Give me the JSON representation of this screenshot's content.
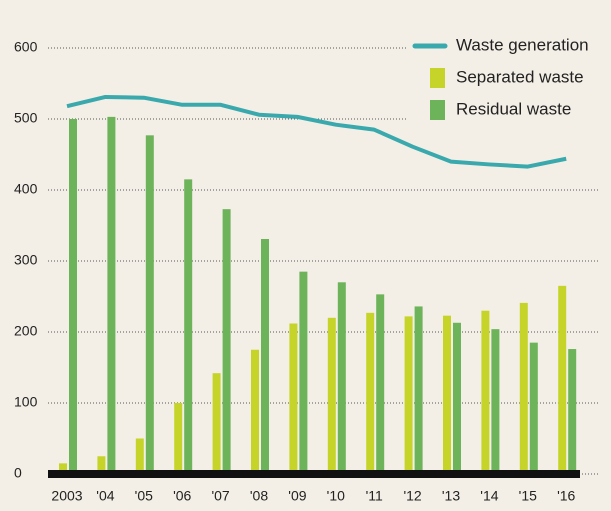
{
  "chart_data": {
    "type": "bar",
    "categories": [
      "2003",
      "'04",
      "'05",
      "'06",
      "'07",
      "'08",
      "'09",
      "'10",
      "'11",
      "'12",
      "'13",
      "'14",
      "'15",
      "'16"
    ],
    "series": [
      {
        "name": "Waste generation",
        "type": "line",
        "color": "#3aa9ad",
        "values": [
          518,
          531,
          530,
          520,
          520,
          506,
          503,
          492,
          485,
          461,
          440,
          436,
          433,
          444
        ]
      },
      {
        "name": "Separated waste",
        "type": "bar",
        "color": "#c6d42a",
        "values": [
          15,
          25,
          50,
          100,
          142,
          175,
          212,
          220,
          227,
          222,
          223,
          230,
          241,
          265
        ]
      },
      {
        "name": "Residual waste",
        "type": "bar",
        "color": "#6db35a",
        "values": [
          500,
          503,
          477,
          415,
          373,
          331,
          285,
          270,
          253,
          236,
          213,
          204,
          185,
          176
        ]
      }
    ],
    "ylim": [
      0,
      600
    ],
    "yticks": [
      0,
      100,
      200,
      300,
      400,
      500,
      600
    ],
    "grid": true,
    "legend": "top-right"
  }
}
